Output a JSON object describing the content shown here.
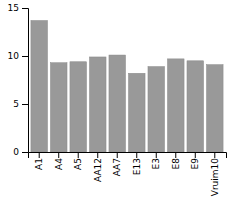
{
  "chart_data": {
    "type": "bar",
    "categories": [
      "A1",
      "A4",
      "A5",
      "AA12",
      "AA7",
      "E13",
      "E3",
      "E8",
      "E9",
      "Vruim10"
    ],
    "values": [
      13.7,
      9.3,
      9.4,
      9.9,
      10.1,
      8.2,
      8.9,
      9.7,
      9.5,
      9.1
    ],
    "color": "#999999",
    "ylim": [
      0,
      15
    ],
    "yticks": [
      0,
      5,
      10,
      15
    ]
  }
}
